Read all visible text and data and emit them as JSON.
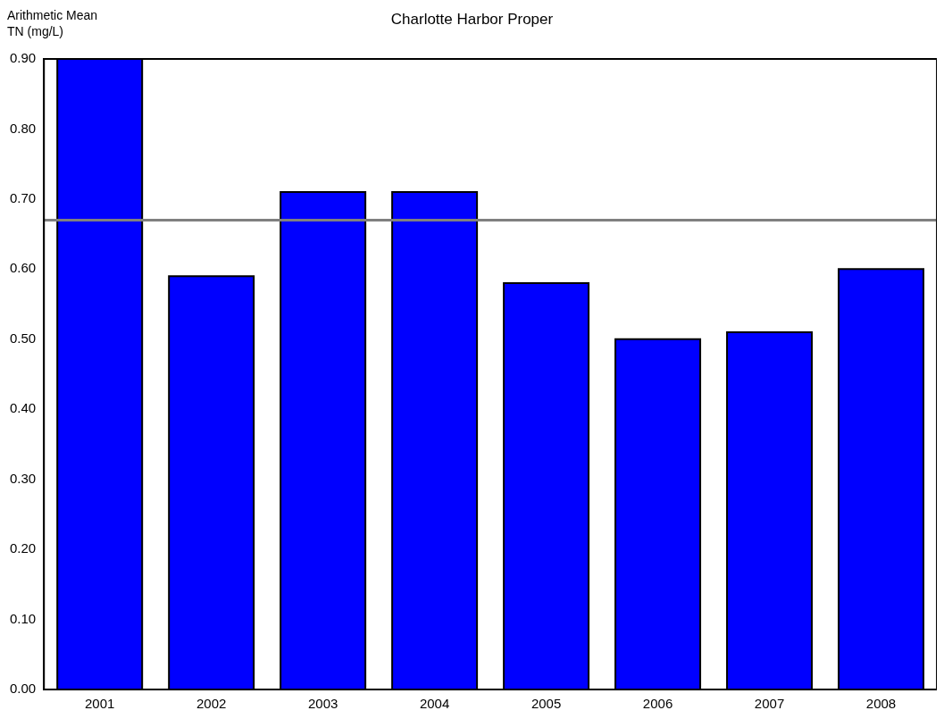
{
  "chart_data": {
    "type": "bar",
    "title": "Charlotte Harbor Proper",
    "ylabel": "Arithmetic Mean\nTN (mg/L)",
    "categories": [
      "2001",
      "2002",
      "2003",
      "2004",
      "2005",
      "2006",
      "2007",
      "2008"
    ],
    "values": [
      0.9,
      0.59,
      0.71,
      0.71,
      0.58,
      0.5,
      0.51,
      0.6
    ],
    "color": "#0000ff",
    "ylim": [
      0,
      0.9
    ],
    "yticks": [
      {
        "value": 0,
        "label": "0.00"
      },
      {
        "value": 0.1,
        "label": "0.10"
      },
      {
        "value": 0.2,
        "label": "0.20"
      },
      {
        "value": 0.3,
        "label": "0.30"
      },
      {
        "value": 0.4,
        "label": "0.40"
      },
      {
        "value": 0.5,
        "label": "0.50"
      },
      {
        "value": 0.6,
        "label": "0.60"
      },
      {
        "value": 0.7,
        "label": "0.70"
      },
      {
        "value": 0.8,
        "label": "0.80"
      },
      {
        "value": 0.9,
        "label": "0.90"
      }
    ],
    "ref_lines": [
      {
        "axis": "y",
        "value": 0.67,
        "color": "#808080"
      }
    ],
    "grid": false,
    "legend": false
  }
}
